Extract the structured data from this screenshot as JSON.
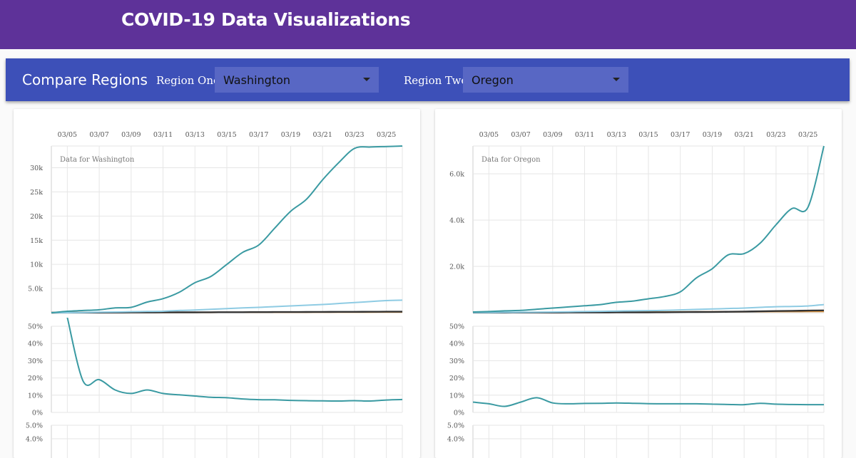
{
  "header": {
    "title": "COVID-19 Data Visualizations"
  },
  "toolbar": {
    "title": "Compare Regions",
    "region_one_label": "Region One:",
    "region_one_value": "Washington",
    "region_two_label": "Region Two:",
    "region_two_value": "Oregon"
  },
  "colors": {
    "header_bg": "#5e3299",
    "toolbar_bg": "#3d50b8",
    "select_bg": "#5867c4",
    "confirmed": "#3a9aa2",
    "recovered": "#8ecbe3",
    "deaths": "#333333",
    "active": "#f2a040",
    "grid": "#e6e6e6"
  },
  "chart_data": [
    {
      "type": "line",
      "title": "Data for Washington",
      "x_ticks": [
        "03/05",
        "03/07",
        "03/09",
        "03/11",
        "03/13",
        "03/15",
        "03/17",
        "03/19",
        "03/21",
        "03/23",
        "03/25"
      ],
      "x": [
        "03/04",
        "03/05",
        "03/06",
        "03/07",
        "03/08",
        "03/09",
        "03/10",
        "03/11",
        "03/12",
        "03/13",
        "03/14",
        "03/15",
        "03/16",
        "03/17",
        "03/18",
        "03/19",
        "03/20",
        "03/21",
        "03/22",
        "03/23",
        "03/24",
        "03/25",
        "03/26"
      ],
      "counts": {
        "ylim": [
          0,
          34500
        ],
        "y_ticks": [
          5000,
          10000,
          15000,
          20000,
          25000,
          30000
        ],
        "y_tick_labels": [
          "5.0k",
          "10k",
          "15k",
          "20k",
          "25k",
          "30k"
        ],
        "series": [
          {
            "values": [
              0,
              300,
              450,
              600,
              1000,
              1100,
              2200,
              2900,
              4200,
              6200,
              7500,
              10000,
              12500,
              14000,
              17500,
              21000,
              23500,
              27500,
              31000,
              34000,
              34300,
              34400,
              34500
            ]
          },
          {
            "values": [
              0,
              0,
              50,
              100,
              150,
              200,
              250,
              300,
              450,
              550,
              700,
              850,
              1000,
              1100,
              1250,
              1400,
              1550,
              1700,
              1900,
              2100,
              2300,
              2500,
              2600
            ]
          },
          {
            "values": [
              0,
              10,
              15,
              20,
              30,
              40,
              50,
              60,
              70,
              80,
              90,
              100,
              110,
              120,
              130,
              140,
              150,
              160,
              170,
              180,
              190,
              200,
              210
            ]
          },
          {
            "values": [
              0,
              20,
              25,
              30,
              35,
              40,
              45,
              50,
              55,
              60,
              65,
              70,
              75,
              80,
              85,
              90,
              95,
              100,
              110,
              120,
              125,
              130,
              135
            ]
          }
        ]
      },
      "rate": {
        "ylim": [
          0,
          50
        ],
        "y_ticks": [
          0,
          10,
          20,
          30,
          40,
          50
        ],
        "y_tick_labels": [
          "0%",
          "10%",
          "20%",
          "30%",
          "40%",
          "50%"
        ],
        "x": [
          "03/05",
          "03/06",
          "03/07",
          "03/08",
          "03/09",
          "03/10",
          "03/11",
          "03/12",
          "03/13",
          "03/14",
          "03/15",
          "03/16",
          "03/17",
          "03/18",
          "03/19",
          "03/20",
          "03/21",
          "03/22",
          "03/23",
          "03/24",
          "03/25",
          "03/26"
        ],
        "values": [
          55,
          18,
          19,
          13,
          11,
          13,
          11,
          10.2,
          9.5,
          8.8,
          8.5,
          7.8,
          7.4,
          7.3,
          7.0,
          6.8,
          6.7,
          6.6,
          6.8,
          6.6,
          7.2,
          7.5
        ]
      },
      "lower": {
        "y_tick_labels": [
          "5.0%",
          "4.0%"
        ]
      }
    },
    {
      "type": "line",
      "title": "Data for Oregon",
      "x_ticks": [
        "03/05",
        "03/07",
        "03/09",
        "03/11",
        "03/13",
        "03/15",
        "03/17",
        "03/19",
        "03/21",
        "03/23",
        "03/25"
      ],
      "x": [
        "03/04",
        "03/05",
        "03/06",
        "03/07",
        "03/08",
        "03/09",
        "03/10",
        "03/11",
        "03/12",
        "03/13",
        "03/14",
        "03/15",
        "03/16",
        "03/17",
        "03/18",
        "03/19",
        "03/20",
        "03/21",
        "03/22",
        "03/23",
        "03/24",
        "03/25",
        "03/26"
      ],
      "counts": {
        "ylim": [
          0,
          7200
        ],
        "y_ticks": [
          2000,
          4000,
          6000
        ],
        "y_tick_labels": [
          "2.0k",
          "4.0k",
          "6.0k"
        ],
        "series": [
          {
            "values": [
              30,
              50,
              80,
              100,
              150,
              200,
              250,
              300,
              350,
              450,
              500,
              600,
              700,
              900,
              1500,
              1900,
              2500,
              2550,
              3000,
              3800,
              4500,
              4550,
              7200
            ]
          },
          {
            "values": [
              5,
              10,
              15,
              20,
              25,
              30,
              40,
              50,
              60,
              70,
              80,
              90,
              100,
              120,
              140,
              160,
              180,
              200,
              230,
              260,
              270,
              290,
              350
            ]
          },
          {
            "values": [
              2,
              3,
              4,
              5,
              6,
              7,
              8,
              9,
              10,
              12,
              14,
              16,
              20,
              25,
              30,
              35,
              40,
              50,
              60,
              70,
              80,
              90,
              100
            ]
          },
          {
            "values": [
              10,
              12,
              14,
              16,
              18,
              20,
              22,
              24,
              26,
              28,
              30,
              32,
              34,
              36,
              38,
              40,
              42,
              44,
              46,
              48,
              50,
              52,
              55
            ]
          }
        ]
      },
      "rate": {
        "ylim": [
          0,
          50
        ],
        "y_ticks": [
          0,
          10,
          20,
          30,
          40,
          50
        ],
        "y_tick_labels": [
          "0%",
          "10%",
          "20%",
          "30%",
          "40%",
          "50%"
        ],
        "x": [
          "03/04",
          "03/05",
          "03/06",
          "03/07",
          "03/08",
          "03/09",
          "03/10",
          "03/11",
          "03/12",
          "03/13",
          "03/14",
          "03/15",
          "03/16",
          "03/17",
          "03/18",
          "03/19",
          "03/20",
          "03/21",
          "03/22",
          "03/23",
          "03/24",
          "03/25",
          "03/26"
        ],
        "values": [
          6,
          5,
          3.5,
          6,
          8.5,
          5.5,
          5,
          5.2,
          5.3,
          5.5,
          5.3,
          5.1,
          5.0,
          5.0,
          5.0,
          4.8,
          4.6,
          4.5,
          5.3,
          4.8,
          4.6,
          4.5,
          4.5
        ]
      },
      "lower": {
        "y_tick_labels": [
          "5.0%",
          "4.0%"
        ]
      }
    }
  ]
}
